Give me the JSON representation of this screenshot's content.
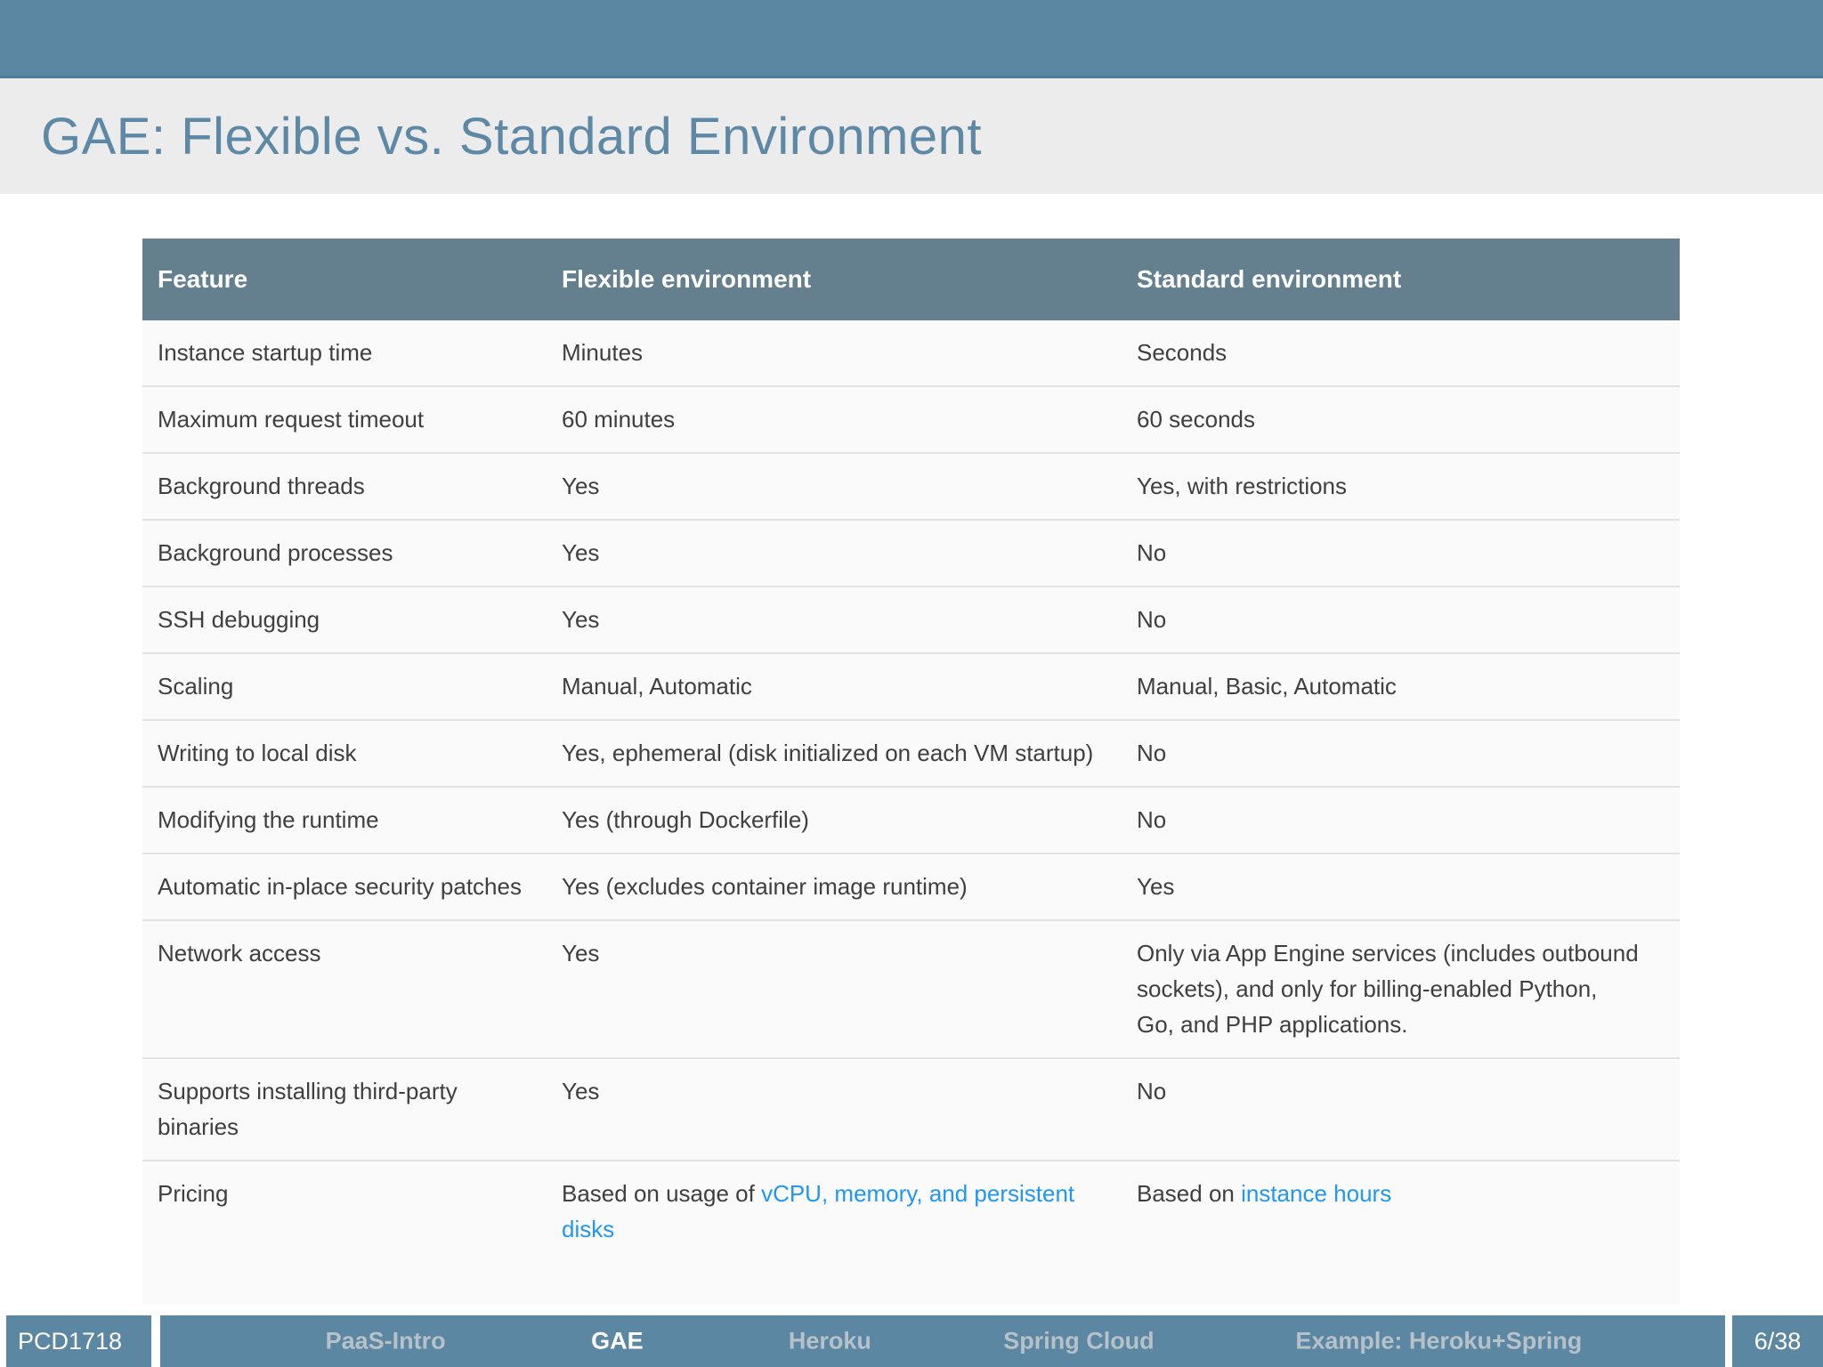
{
  "slide": {
    "title": "GAE: Flexible vs. Standard Environment"
  },
  "table": {
    "headers": [
      "Feature",
      "Flexible environment",
      "Standard environment"
    ],
    "rows": [
      {
        "cells": [
          [
            {
              "t": "Instance startup time"
            }
          ],
          [
            {
              "t": "Minutes"
            }
          ],
          [
            {
              "t": "Seconds"
            }
          ]
        ]
      },
      {
        "cells": [
          [
            {
              "t": "Maximum request timeout"
            }
          ],
          [
            {
              "t": "60 minutes"
            }
          ],
          [
            {
              "t": "60 seconds"
            }
          ]
        ]
      },
      {
        "cells": [
          [
            {
              "t": "Background threads"
            }
          ],
          [
            {
              "t": "Yes"
            }
          ],
          [
            {
              "t": "Yes, with restrictions"
            }
          ]
        ]
      },
      {
        "cells": [
          [
            {
              "t": "Background processes"
            }
          ],
          [
            {
              "t": "Yes"
            }
          ],
          [
            {
              "t": "No"
            }
          ]
        ]
      },
      {
        "cells": [
          [
            {
              "t": "SSH debugging"
            }
          ],
          [
            {
              "t": "Yes"
            }
          ],
          [
            {
              "t": "No"
            }
          ]
        ]
      },
      {
        "cells": [
          [
            {
              "t": "Scaling"
            }
          ],
          [
            {
              "t": "Manual, Automatic"
            }
          ],
          [
            {
              "t": "Manual, Basic, Automatic"
            }
          ]
        ]
      },
      {
        "cells": [
          [
            {
              "t": "Writing to local disk"
            }
          ],
          [
            {
              "t": "Yes, ephemeral (disk initialized on each VM startup)"
            }
          ],
          [
            {
              "t": "No"
            }
          ]
        ]
      },
      {
        "cells": [
          [
            {
              "t": "Modifying the runtime"
            }
          ],
          [
            {
              "t": "Yes (through Dockerfile)"
            }
          ],
          [
            {
              "t": "No"
            }
          ]
        ]
      },
      {
        "cells": [
          [
            {
              "t": "Automatic in-place security patches"
            }
          ],
          [
            {
              "t": "Yes (excludes container image runtime)"
            }
          ],
          [
            {
              "t": "Yes"
            }
          ]
        ]
      },
      {
        "cells": [
          [
            {
              "t": "Network access"
            }
          ],
          [
            {
              "t": "Yes"
            }
          ],
          [
            {
              "t": "Only via App Engine services (includes outbound sockets), and only for billing-enabled Python, Go, and PHP applications."
            }
          ]
        ]
      },
      {
        "cells": [
          [
            {
              "t": "Supports installing third-party binaries"
            }
          ],
          [
            {
              "t": "Yes"
            }
          ],
          [
            {
              "t": "No"
            }
          ]
        ]
      },
      {
        "cells": [
          [
            {
              "t": "Pricing"
            }
          ],
          [
            {
              "t": "Based on usage of "
            },
            {
              "t": "vCPU, memory, and persistent disks",
              "link": true
            }
          ],
          [
            {
              "t": "Based on "
            },
            {
              "t": "instance hours",
              "link": true
            }
          ]
        ]
      }
    ]
  },
  "footer": {
    "course_code": "PCD1718",
    "sections": [
      {
        "label": "PaaS-Intro",
        "active": false
      },
      {
        "label": "GAE",
        "active": true
      },
      {
        "label": "Heroku",
        "active": false
      },
      {
        "label": "Spring Cloud",
        "active": false
      },
      {
        "label": "Example: Heroku+Spring",
        "active": false
      }
    ],
    "page": "6/38"
  },
  "colors": {
    "accent": "#5b87a2",
    "accent-dark": "#4e7b96",
    "table-header": "#64808e",
    "link": "#2196f3",
    "title-color": "#5d89a6",
    "band": "#ececec",
    "row-bg": "#fafafa",
    "row-border": "#e2e2e2",
    "cell-text": "#3f3f3f",
    "nav-inactive": "#b6c1c9"
  }
}
